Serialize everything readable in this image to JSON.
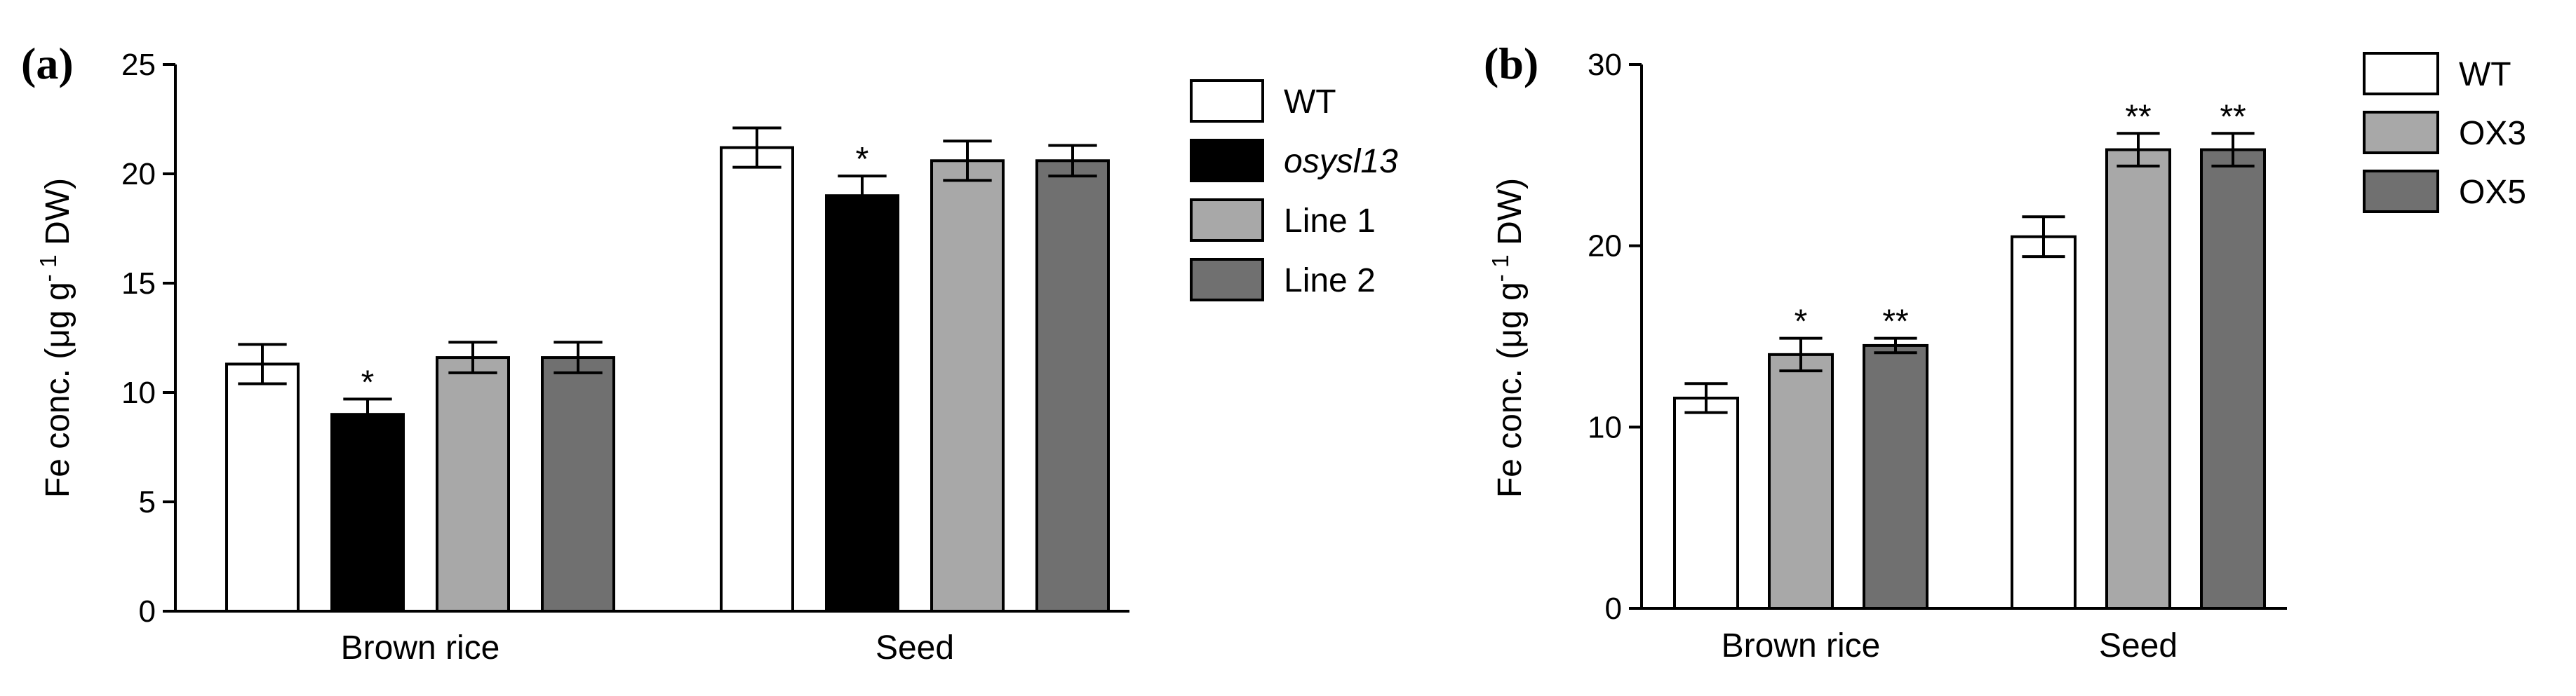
{
  "chart_data": [
    {
      "type": "bar",
      "panel_label": "(a)",
      "categories": [
        "Brown rice",
        "Seed"
      ],
      "ylabel": "Fe conc. (μg g⁻¹ DW)",
      "ylabel_parts": {
        "prefix": "Fe conc. (μg g",
        "sup": "- 1",
        "suffix": " DW)"
      },
      "ylim": [
        0,
        25
      ],
      "yticks": [
        0,
        5,
        10,
        15,
        20,
        25
      ],
      "legend_position": "right",
      "series": [
        {
          "name": "WT",
          "italic": false,
          "color": "#ffffff",
          "values": [
            11.3,
            21.2
          ],
          "errors": [
            0.9,
            0.9
          ],
          "significance": [
            "",
            ""
          ]
        },
        {
          "name": "osysl13",
          "italic": true,
          "color": "#000000",
          "values": [
            9.0,
            19.0
          ],
          "errors": [
            0.7,
            0.9
          ],
          "significance": [
            "*",
            "*"
          ]
        },
        {
          "name": "Line 1",
          "italic": false,
          "color": "#a8a8a8",
          "values": [
            11.6,
            20.6
          ],
          "errors": [
            0.7,
            0.9
          ],
          "significance": [
            "",
            ""
          ]
        },
        {
          "name": "Line 2",
          "italic": false,
          "color": "#707070",
          "values": [
            11.6,
            20.6
          ],
          "errors": [
            0.7,
            0.7
          ],
          "significance": [
            "",
            ""
          ]
        }
      ]
    },
    {
      "type": "bar",
      "panel_label": "(b)",
      "categories": [
        "Brown rice",
        "Seed"
      ],
      "ylabel": "Fe conc. (μg g⁻¹ DW)",
      "ylabel_parts": {
        "prefix": "Fe conc. (μg g",
        "sup": "- 1",
        "suffix": " DW)"
      },
      "ylim": [
        0,
        30
      ],
      "yticks": [
        0,
        10,
        20,
        30
      ],
      "legend_position": "right",
      "series": [
        {
          "name": "WT",
          "italic": false,
          "color": "#ffffff",
          "values": [
            11.6,
            20.5
          ],
          "errors": [
            0.8,
            1.1
          ],
          "significance": [
            "",
            ""
          ]
        },
        {
          "name": "OX3",
          "italic": false,
          "color": "#a8a8a8",
          "values": [
            14.0,
            25.3
          ],
          "errors": [
            0.9,
            0.9
          ],
          "significance": [
            "*",
            "**"
          ]
        },
        {
          "name": "OX5",
          "italic": false,
          "color": "#707070",
          "values": [
            14.5,
            25.3
          ],
          "errors": [
            0.4,
            0.9
          ],
          "significance": [
            "**",
            "**"
          ]
        }
      ]
    }
  ]
}
